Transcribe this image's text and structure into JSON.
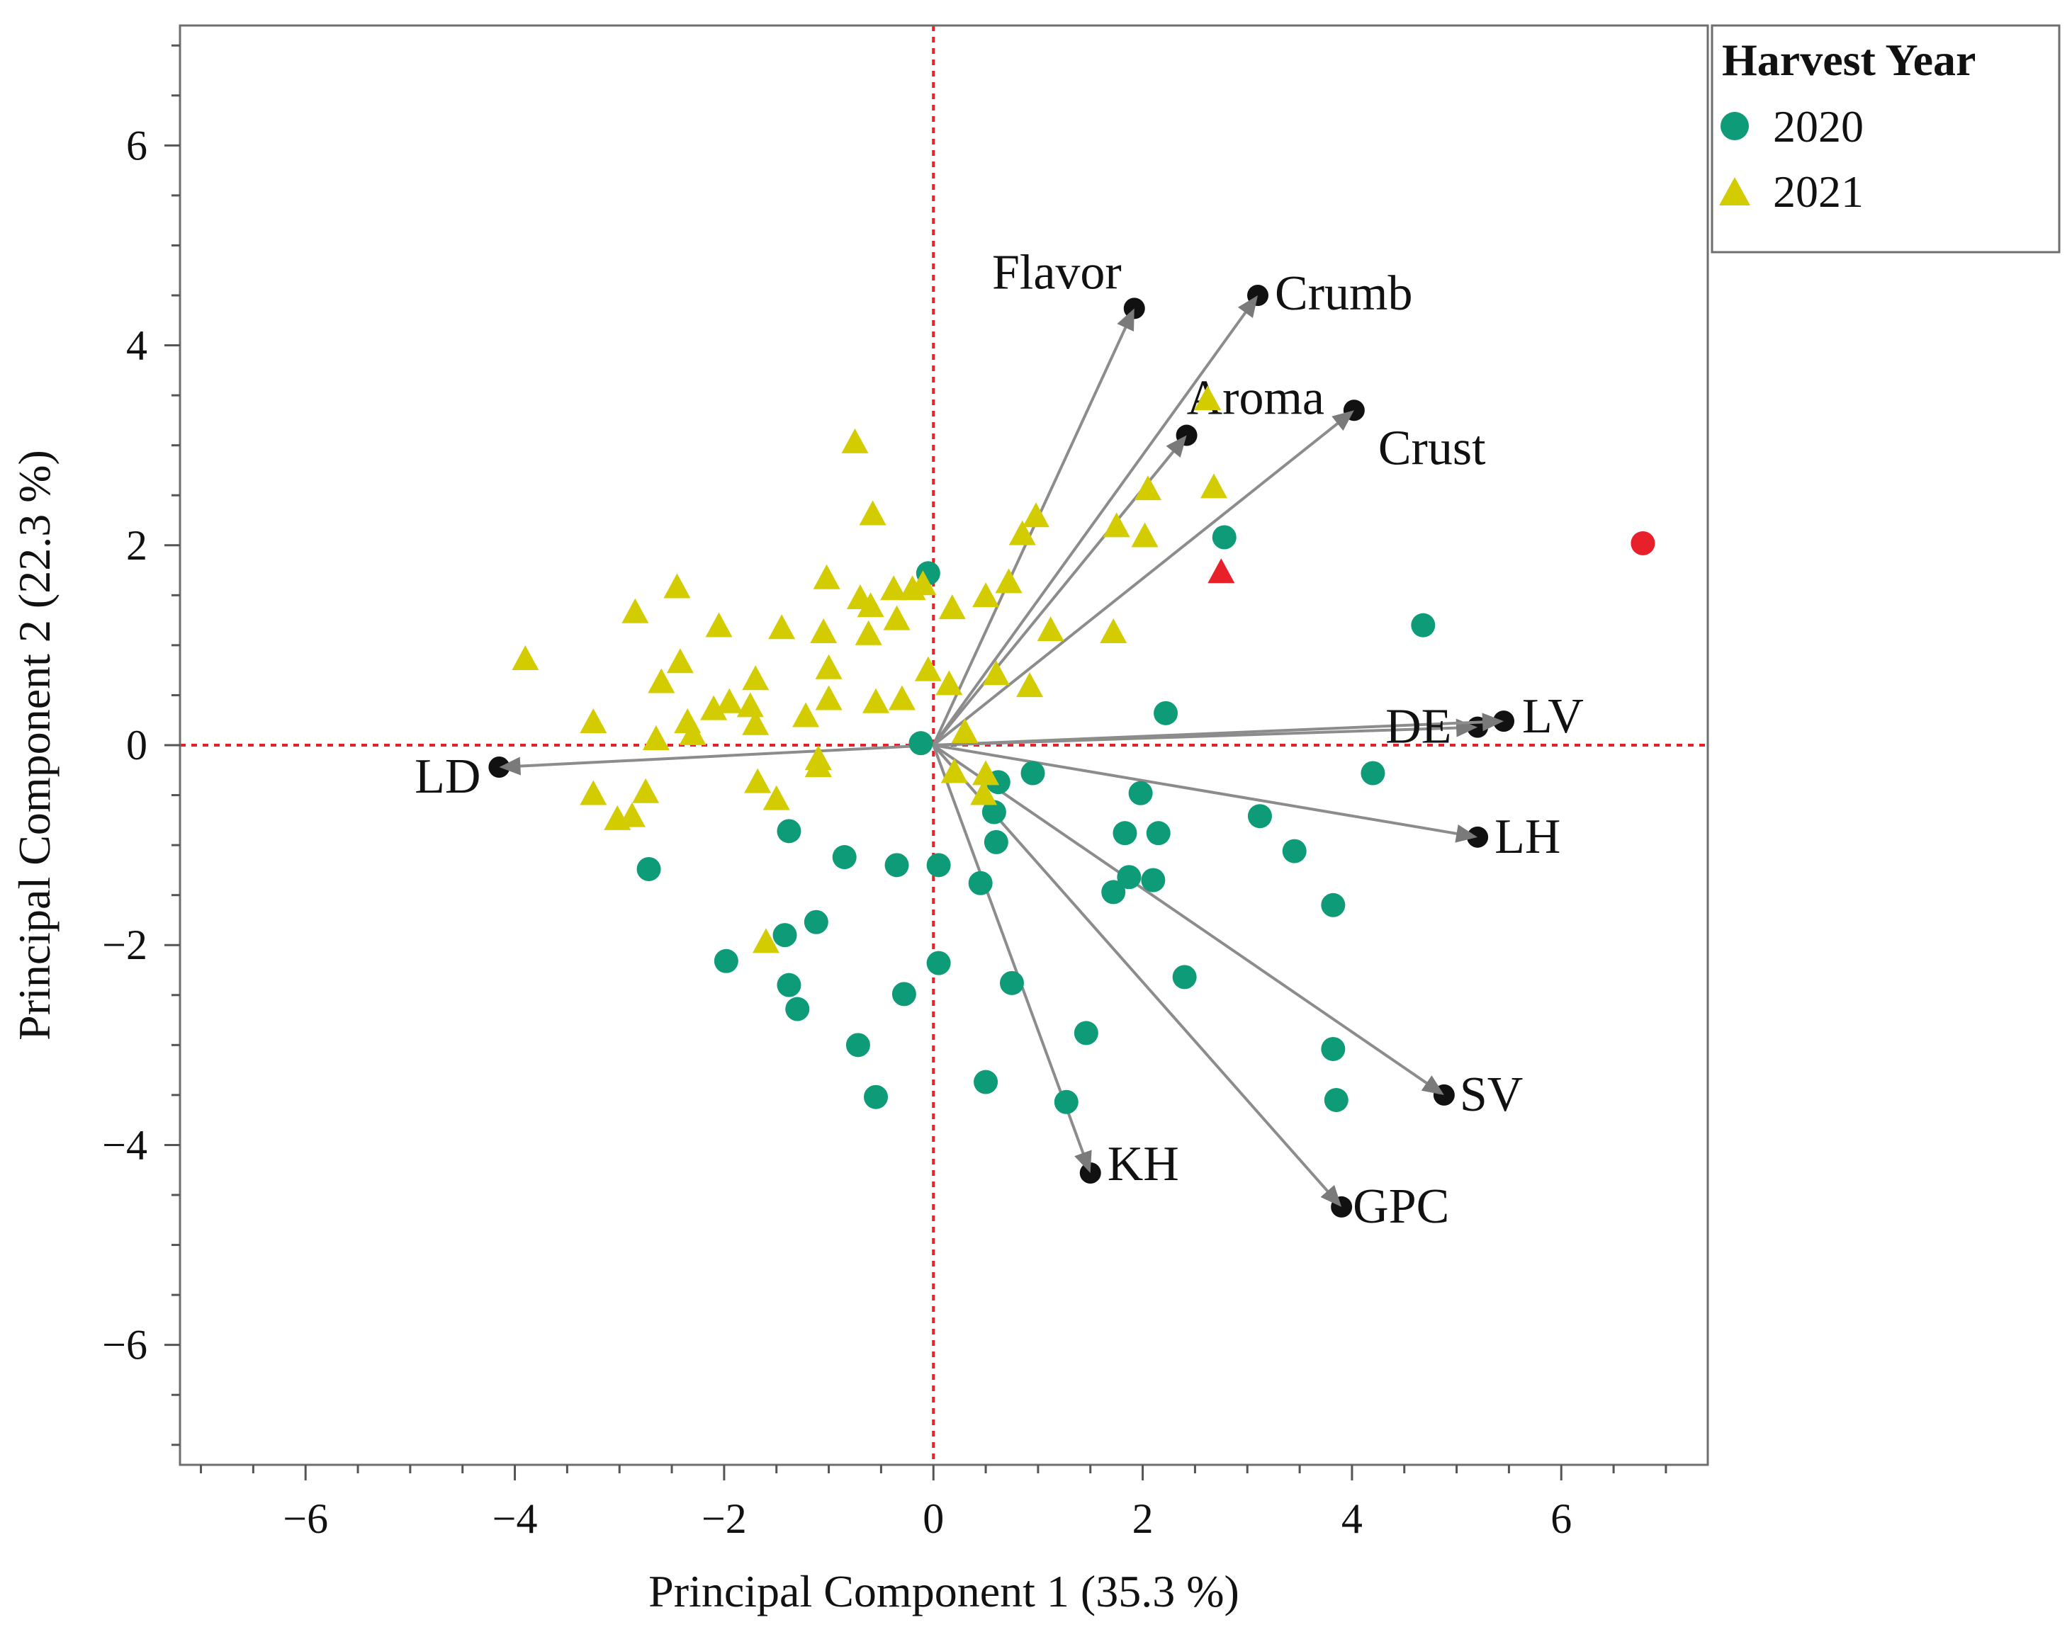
{
  "chart_data": {
    "type": "scatter",
    "subtype": "pca-biplot",
    "xlabel": "Principal Component 1  (35.3 %)",
    "ylabel": "Principal Component 2  (22.3 %)",
    "xlim": [
      -7.2,
      7.4
    ],
    "ylim": [
      -7.2,
      7.2
    ],
    "x_ticks": [
      -6,
      -4,
      -2,
      0,
      2,
      4,
      6
    ],
    "y_ticks": [
      -6,
      -4,
      -2,
      0,
      2,
      4,
      6
    ],
    "x_tick_labels": [
      "−6",
      "−4",
      "−2",
      "0",
      "2",
      "4",
      "6"
    ],
    "y_tick_labels": [
      "−6",
      "−4",
      "−2",
      "0",
      "2",
      "4",
      "6"
    ],
    "reference_lines": {
      "x": 0,
      "y": 0,
      "color": "#e8202a",
      "style": "dotted"
    },
    "legend": {
      "title": "Harvest Year",
      "position": "top-right outside",
      "entries": [
        {
          "label": "2020",
          "marker": "circle",
          "color": "#0e9b77"
        },
        {
          "label": "2021",
          "marker": "triangle",
          "color": "#d2cc00"
        }
      ]
    },
    "highlight_color": "#e8202a",
    "arrow_color": "#8c8c8c",
    "series": [
      {
        "name": "2020",
        "marker": "circle",
        "color": "#0e9b77",
        "points": [
          [
            -0.05,
            1.72
          ],
          [
            -0.12,
            0.02
          ],
          [
            2.78,
            2.08
          ],
          [
            4.68,
            1.2
          ],
          [
            2.22,
            0.32
          ],
          [
            4.2,
            -0.28
          ],
          [
            0.62,
            -0.37
          ],
          [
            0.95,
            -0.28
          ],
          [
            1.98,
            -0.48
          ],
          [
            3.12,
            -0.71
          ],
          [
            0.58,
            -0.67
          ],
          [
            1.83,
            -0.88
          ],
          [
            2.15,
            -0.88
          ],
          [
            3.45,
            -1.06
          ],
          [
            -1.38,
            -0.86
          ],
          [
            -0.85,
            -1.12
          ],
          [
            -0.35,
            -1.2
          ],
          [
            0.05,
            -1.2
          ],
          [
            0.6,
            -0.97
          ],
          [
            0.45,
            -1.38
          ],
          [
            1.87,
            -1.32
          ],
          [
            2.1,
            -1.35
          ],
          [
            1.72,
            -1.47
          ],
          [
            3.82,
            -1.6
          ],
          [
            -2.72,
            -1.24
          ],
          [
            -1.12,
            -1.77
          ],
          [
            -1.42,
            -1.9
          ],
          [
            -1.98,
            -2.16
          ],
          [
            0.05,
            -2.18
          ],
          [
            2.4,
            -2.32
          ],
          [
            -1.38,
            -2.4
          ],
          [
            -0.28,
            -2.49
          ],
          [
            0.75,
            -2.38
          ],
          [
            -1.3,
            -2.64
          ],
          [
            1.46,
            -2.88
          ],
          [
            -0.72,
            -3.0
          ],
          [
            3.82,
            -3.04
          ],
          [
            0.5,
            -3.37
          ],
          [
            -0.55,
            -3.52
          ],
          [
            1.27,
            -3.57
          ],
          [
            3.85,
            -3.55
          ]
        ]
      },
      {
        "name": "2021",
        "marker": "triangle",
        "color": "#d2cc00",
        "points": [
          [
            -0.75,
            3.02
          ],
          [
            -0.58,
            2.3
          ],
          [
            0.98,
            2.28
          ],
          [
            0.85,
            2.1
          ],
          [
            2.05,
            2.55
          ],
          [
            2.68,
            2.57
          ],
          [
            2.62,
            3.45
          ],
          [
            1.75,
            2.18
          ],
          [
            2.02,
            2.08
          ],
          [
            -0.38,
            1.55
          ],
          [
            -0.2,
            1.55
          ],
          [
            -0.1,
            1.6
          ],
          [
            -0.7,
            1.46
          ],
          [
            -0.6,
            1.38
          ],
          [
            -0.35,
            1.25
          ],
          [
            -0.62,
            1.1
          ],
          [
            -1.02,
            1.66
          ],
          [
            0.5,
            1.48
          ],
          [
            0.72,
            1.62
          ],
          [
            0.18,
            1.36
          ],
          [
            1.12,
            1.14
          ],
          [
            1.72,
            1.12
          ],
          [
            -2.45,
            1.57
          ],
          [
            -2.85,
            1.32
          ],
          [
            -2.05,
            1.18
          ],
          [
            -1.45,
            1.16
          ],
          [
            -1.05,
            1.12
          ],
          [
            -3.9,
            0.85
          ],
          [
            -2.42,
            0.82
          ],
          [
            -2.6,
            0.62
          ],
          [
            -1.7,
            0.65
          ],
          [
            -1.0,
            0.76
          ],
          [
            -0.05,
            0.74
          ],
          [
            0.6,
            0.7
          ],
          [
            0.15,
            0.6
          ],
          [
            0.92,
            0.58
          ],
          [
            -1.0,
            0.45
          ],
          [
            -0.55,
            0.42
          ],
          [
            -0.3,
            0.45
          ],
          [
            -1.95,
            0.42
          ],
          [
            -2.1,
            0.35
          ],
          [
            -1.75,
            0.38
          ],
          [
            -2.35,
            0.22
          ],
          [
            -1.7,
            0.2
          ],
          [
            -1.22,
            0.28
          ],
          [
            -3.25,
            0.22
          ],
          [
            -2.3,
            0.1
          ],
          [
            -2.65,
            0.05
          ],
          [
            0.3,
            0.12
          ],
          [
            -1.1,
            -0.15
          ],
          [
            -1.1,
            -0.22
          ],
          [
            0.2,
            -0.28
          ],
          [
            0.5,
            -0.3
          ],
          [
            -1.68,
            -0.38
          ],
          [
            -1.5,
            -0.55
          ],
          [
            0.48,
            -0.5
          ],
          [
            -2.75,
            -0.48
          ],
          [
            -3.25,
            -0.5
          ],
          [
            -2.88,
            -0.72
          ],
          [
            -3.02,
            -0.75
          ],
          [
            -1.6,
            -1.98
          ]
        ]
      },
      {
        "name": "highlighted",
        "points": [
          {
            "x": 6.78,
            "y": 2.02,
            "marker": "circle",
            "color": "#e8202a"
          },
          {
            "x": 2.75,
            "y": 1.72,
            "marker": "triangle",
            "color": "#e8202a"
          }
        ]
      }
    ],
    "loadings": [
      {
        "label": "Flavor",
        "x": 1.92,
        "y": 4.37
      },
      {
        "label": "Crumb",
        "x": 3.1,
        "y": 4.5
      },
      {
        "label": "Aroma",
        "x": 2.42,
        "y": 3.1
      },
      {
        "label": "Crust",
        "x": 4.02,
        "y": 3.35
      },
      {
        "label": "DE",
        "x": 5.2,
        "y": 0.18
      },
      {
        "label": "LV",
        "x": 5.45,
        "y": 0.24
      },
      {
        "label": "LH",
        "x": 5.2,
        "y": -0.92
      },
      {
        "label": "SV",
        "x": 4.88,
        "y": -3.5
      },
      {
        "label": "GPC",
        "x": 3.9,
        "y": -4.62
      },
      {
        "label": "KH",
        "x": 1.5,
        "y": -4.28
      },
      {
        "label": "LD",
        "x": -4.15,
        "y": -0.22
      }
    ]
  }
}
